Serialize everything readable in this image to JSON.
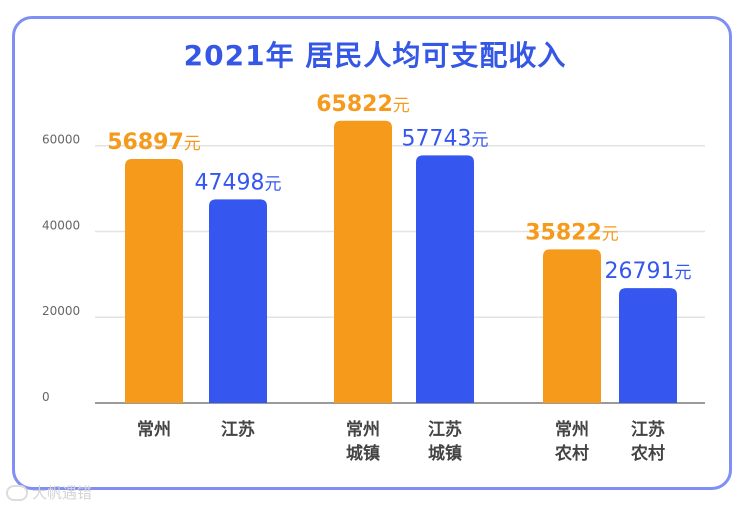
{
  "chart_data": {
    "type": "bar",
    "title": "2021年 居民人均可支配收入",
    "categories": [
      "常州",
      "江苏",
      "常州\n城镇",
      "江苏\n城镇",
      "常州\n农村",
      "江苏\n农村"
    ],
    "values": [
      56897,
      47498,
      65822,
      57743,
      35822,
      26791
    ],
    "value_labels": [
      "56897",
      "47498",
      "65822",
      "57743",
      "35822",
      "26791"
    ],
    "unit": "元",
    "yticks": [
      "0",
      "20000",
      "40000",
      "60000"
    ],
    "ylim": [
      0,
      66000
    ],
    "grid": true,
    "colors": {
      "changzhou": "#f59a1a",
      "jiangsu": "#3557f0",
      "axis": "#9a9a9a",
      "grid": "#e3e3e3"
    }
  },
  "watermark": {
    "text": "大帆遇错"
  }
}
